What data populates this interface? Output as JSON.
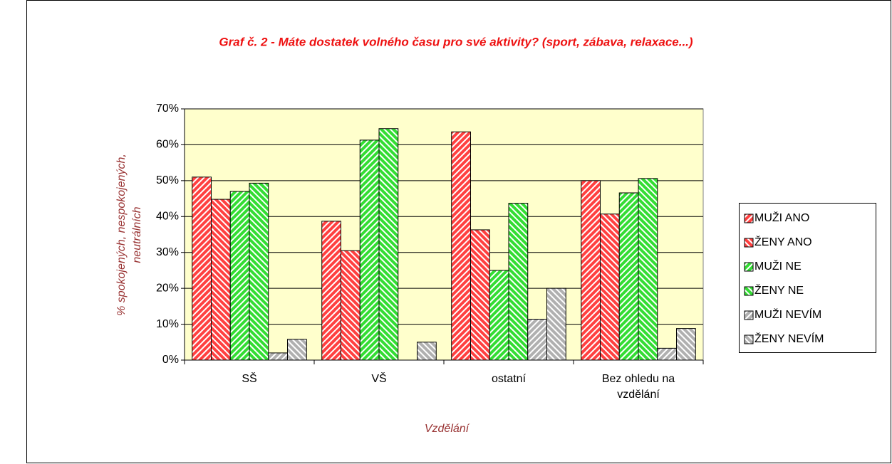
{
  "chart_data": {
    "type": "bar",
    "title": "Graf č. 2 - Máte dostatek volného času pro své aktivity? (sport, zábava, relaxace...)",
    "x_label": "Vzdělání",
    "y_label": "% spokojených, nespokojených, neutrálních",
    "categories": [
      "SŠ",
      "VŠ",
      "ostatní",
      "Bez ohledu na vzdělání"
    ],
    "series": [
      {
        "name": "MUŽI ANO",
        "color": "#ff4040",
        "values": [
          51,
          38.7,
          63.6,
          50
        ]
      },
      {
        "name": "ŽENY ANO",
        "color": "#ff4040",
        "values": [
          44.8,
          30.5,
          36.3,
          40.7
        ]
      },
      {
        "name": "MUŽI NE",
        "color": "#33dd33",
        "values": [
          47,
          61.3,
          25,
          46.6
        ]
      },
      {
        "name": "ŽENY NE",
        "color": "#33dd33",
        "values": [
          49.3,
          64.5,
          43.7,
          50.6
        ]
      },
      {
        "name": "MUŽI NEVÍM",
        "color": "#b0b0b0",
        "values": [
          2,
          0,
          11.4,
          3.3
        ]
      },
      {
        "name": "ŽENY NEVÍM",
        "color": "#b0b0b0",
        "values": [
          5.8,
          5,
          20,
          8.8
        ]
      }
    ],
    "ylim": [
      0,
      70
    ],
    "yticks": [
      {
        "value": 0,
        "label": "0%"
      },
      {
        "value": 10,
        "label": "10%"
      },
      {
        "value": 20,
        "label": "20%"
      },
      {
        "value": 30,
        "label": "30%"
      },
      {
        "value": 40,
        "label": "40%"
      },
      {
        "value": 50,
        "label": "50%"
      },
      {
        "value": 60,
        "label": "60%"
      },
      {
        "value": 70,
        "label": "70%"
      }
    ],
    "grid": true,
    "legend": "right"
  }
}
